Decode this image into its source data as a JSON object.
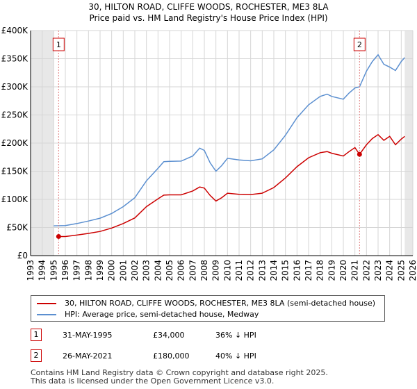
{
  "chart_data": {
    "type": "line",
    "title": "30, HILTON ROAD, CLIFFE WOODS, ROCHESTER, ME3 8LA",
    "subtitle": "Price paid vs. HM Land Registry's House Price Index (HPI)",
    "xlim": [
      1993,
      2026
    ],
    "ylim": [
      0,
      400000
    ],
    "x_ticks": [
      1993,
      1994,
      1995,
      1996,
      1997,
      1998,
      1999,
      2000,
      2001,
      2002,
      2003,
      2004,
      2005,
      2006,
      2007,
      2008,
      2009,
      2010,
      2011,
      2012,
      2013,
      2014,
      2015,
      2016,
      2017,
      2018,
      2019,
      2020,
      2021,
      2022,
      2023,
      2024,
      2025,
      2026
    ],
    "x_tick_labels": [
      "1993",
      "1994",
      "1995",
      "1996",
      "1997",
      "1998",
      "1999",
      "2000",
      "2001",
      "2002",
      "2003",
      "2004",
      "2005",
      "2006",
      "2007",
      "2008",
      "2009",
      "2010",
      "2011",
      "2012",
      "2013",
      "2014",
      "2015",
      "2016",
      "2017",
      "2018",
      "2019",
      "2020",
      "2021",
      "2022",
      "2023",
      "2024",
      "2025",
      "2026"
    ],
    "y_ticks": [
      0,
      50000,
      100000,
      150000,
      200000,
      250000,
      300000,
      350000,
      400000
    ],
    "y_tick_labels": [
      "£0",
      "£50K",
      "£100K",
      "£150K",
      "£200K",
      "£250K",
      "£300K",
      "£350K",
      "£400K"
    ],
    "grid": true,
    "data_start": 1995.0,
    "data_end": 2025.3,
    "series": [
      {
        "name": "30, HILTON ROAD, CLIFFE WOODS, ROCHESTER, ME3 8LA (semi-detached house)",
        "color": "#cc0000",
        "points": [
          [
            1995.4,
            34000
          ],
          [
            1996.0,
            34000
          ],
          [
            1997.0,
            36500
          ],
          [
            1998.0,
            39500
          ],
          [
            1999.0,
            43000
          ],
          [
            2000.0,
            49000
          ],
          [
            2001.0,
            57000
          ],
          [
            2002.0,
            67000
          ],
          [
            2003.0,
            87000
          ],
          [
            2004.0,
            101000
          ],
          [
            2004.5,
            107500
          ],
          [
            2005.0,
            108000
          ],
          [
            2006.0,
            108000
          ],
          [
            2007.0,
            115000
          ],
          [
            2007.6,
            122000
          ],
          [
            2008.0,
            120000
          ],
          [
            2008.5,
            107000
          ],
          [
            2009.0,
            97000
          ],
          [
            2009.5,
            103000
          ],
          [
            2010.0,
            111000
          ],
          [
            2011.0,
            109000
          ],
          [
            2012.0,
            108500
          ],
          [
            2013.0,
            111000
          ],
          [
            2014.0,
            121000
          ],
          [
            2015.0,
            138000
          ],
          [
            2016.0,
            158000
          ],
          [
            2017.0,
            174000
          ],
          [
            2018.0,
            183000
          ],
          [
            2018.6,
            185000
          ],
          [
            2019.0,
            182000
          ],
          [
            2020.0,
            177000
          ],
          [
            2020.5,
            185000
          ],
          [
            2021.0,
            192000
          ],
          [
            2021.4,
            180000
          ],
          [
            2022.0,
            197000
          ],
          [
            2022.5,
            208000
          ],
          [
            2023.0,
            215000
          ],
          [
            2023.5,
            205000
          ],
          [
            2024.0,
            212000
          ],
          [
            2024.5,
            197000
          ],
          [
            2025.0,
            207000
          ],
          [
            2025.3,
            212000
          ]
        ],
        "markers": [
          [
            1995.42,
            34000
          ],
          [
            2021.4,
            180000
          ]
        ]
      },
      {
        "name": "HPI: Average price, semi-detached house, Medway",
        "color": "#5b8fd0",
        "points": [
          [
            1995.0,
            53000
          ],
          [
            1996.0,
            53500
          ],
          [
            1997.0,
            57000
          ],
          [
            1998.0,
            61500
          ],
          [
            1999.0,
            66500
          ],
          [
            2000.0,
            75000
          ],
          [
            2001.0,
            87000
          ],
          [
            2002.0,
            103000
          ],
          [
            2003.0,
            133000
          ],
          [
            2004.0,
            155000
          ],
          [
            2004.5,
            167000
          ],
          [
            2005.0,
            167500
          ],
          [
            2006.0,
            168000
          ],
          [
            2007.0,
            177000
          ],
          [
            2007.6,
            191000
          ],
          [
            2008.0,
            187000
          ],
          [
            2008.5,
            165000
          ],
          [
            2009.0,
            150000
          ],
          [
            2009.5,
            160000
          ],
          [
            2010.0,
            173000
          ],
          [
            2011.0,
            170000
          ],
          [
            2012.0,
            168500
          ],
          [
            2013.0,
            172000
          ],
          [
            2014.0,
            188000
          ],
          [
            2015.0,
            214000
          ],
          [
            2016.0,
            245000
          ],
          [
            2017.0,
            268000
          ],
          [
            2018.0,
            283000
          ],
          [
            2018.6,
            287000
          ],
          [
            2019.0,
            283000
          ],
          [
            2020.0,
            278000
          ],
          [
            2020.5,
            289000
          ],
          [
            2021.0,
            298000
          ],
          [
            2021.4,
            300000
          ],
          [
            2022.0,
            328000
          ],
          [
            2022.5,
            345000
          ],
          [
            2023.0,
            357000
          ],
          [
            2023.5,
            340000
          ],
          [
            2024.0,
            335000
          ],
          [
            2024.5,
            329000
          ],
          [
            2025.0,
            345000
          ],
          [
            2025.3,
            352000
          ]
        ]
      }
    ],
    "annotations": [
      {
        "label": "1",
        "x": 1995.42
      },
      {
        "label": "2",
        "x": 2021.4
      }
    ]
  },
  "legend": {
    "property_label": "30, HILTON ROAD, CLIFFE WOODS, ROCHESTER, ME3 8LA (semi-detached house)",
    "hpi_label": "HPI: Average price, semi-detached house, Medway"
  },
  "transactions": [
    {
      "num": "1",
      "date": "31-MAY-1995",
      "price": "£34,000",
      "hpi": "36% ↓ HPI"
    },
    {
      "num": "2",
      "date": "26-MAY-2021",
      "price": "£180,000",
      "hpi": "40% ↓ HPI"
    }
  ],
  "footer": {
    "line1": "Contains HM Land Registry data © Crown copyright and database right 2025.",
    "line2": "This data is licensed under the Open Government Licence v3.0."
  }
}
